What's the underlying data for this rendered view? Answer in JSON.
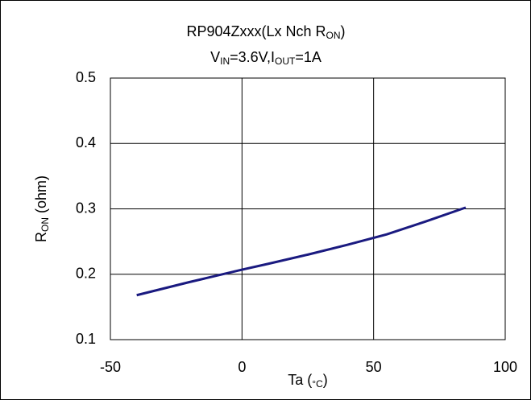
{
  "chart_data": {
    "type": "line",
    "title": [
      "RP904Zxxx(Lx Nch R",
      "ON",
      ")"
    ],
    "subtitle": [
      "V",
      "IN",
      "=3.6V,I",
      "OUT",
      "=1A"
    ],
    "x_label": [
      "Ta (",
      "°C",
      ")"
    ],
    "y_label": [
      "R",
      "ON",
      " (ohm)"
    ],
    "x": [
      -40,
      -20,
      0,
      10,
      25,
      40,
      55,
      70,
      85
    ],
    "series": [
      {
        "color": "#1a1a80",
        "values": [
          0.168,
          0.188,
          0.207,
          0.216,
          0.23,
          0.245,
          0.261,
          0.281,
          0.302
        ]
      }
    ],
    "xlim": [
      -50,
      100
    ],
    "xticks": [
      -50,
      0,
      50,
      100
    ],
    "ylim": [
      0.1,
      0.5
    ],
    "yticks": [
      0.1,
      0.2,
      0.3,
      0.4,
      0.5
    ],
    "grid": true
  }
}
